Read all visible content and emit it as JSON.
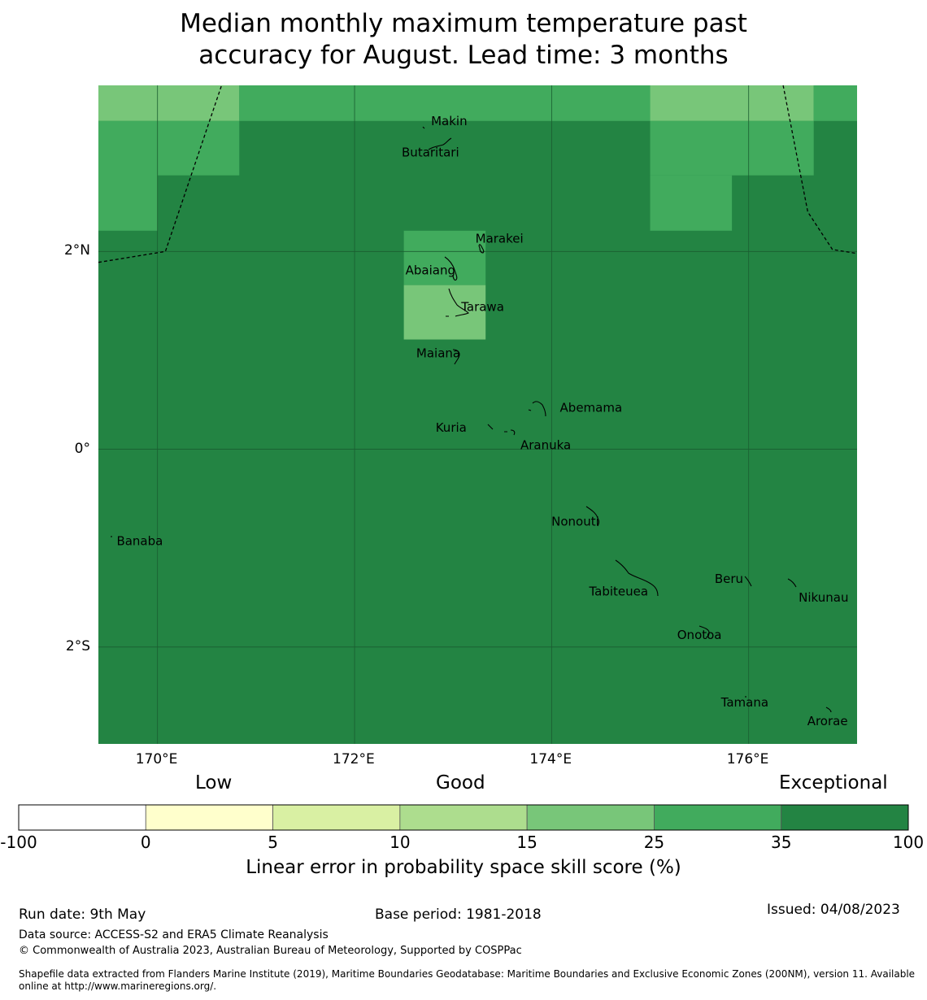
{
  "title": {
    "line1": "Median monthly maximum temperature past",
    "line2": "accuracy for August. Lead time: 3 months"
  },
  "map": {
    "extent": {
      "lon_min": 169.4,
      "lon_max": 177.1,
      "lat_min": -2.98,
      "lat_max": 3.68
    },
    "x_ticks": [
      {
        "lon": 170,
        "label": "170°E"
      },
      {
        "lon": 172,
        "label": "172°E"
      },
      {
        "lon": 174,
        "label": "174°E"
      },
      {
        "lon": 176,
        "label": "176°E"
      }
    ],
    "y_ticks": [
      {
        "lat": 2,
        "label": "2°N"
      },
      {
        "lat": 0,
        "label": "0°"
      },
      {
        "lat": -2,
        "label": "2°S"
      }
    ],
    "background_category": "35 to 100",
    "cells": [
      {
        "lon": [
          169.4,
          170.0
        ],
        "lat": [
          3.32,
          3.68
        ],
        "category": "15 to 25"
      },
      {
        "lon": [
          170.0,
          170.83
        ],
        "lat": [
          3.32,
          3.68
        ],
        "category": "15 to 25"
      },
      {
        "lon": [
          170.83,
          175.0
        ],
        "lat": [
          3.32,
          3.68
        ],
        "category": "25 to 35"
      },
      {
        "lon": [
          175.0,
          176.66
        ],
        "lat": [
          3.32,
          3.68
        ],
        "category": "15 to 25"
      },
      {
        "lon": [
          176.66,
          177.1
        ],
        "lat": [
          3.32,
          3.68
        ],
        "category": "25 to 35"
      },
      {
        "lon": [
          169.4,
          170.0
        ],
        "lat": [
          2.21,
          3.32
        ],
        "category": "25 to 35"
      },
      {
        "lon": [
          170.0,
          170.83
        ],
        "lat": [
          2.77,
          3.32
        ],
        "category": "25 to 35"
      },
      {
        "lon": [
          175.0,
          176.66
        ],
        "lat": [
          2.77,
          3.32
        ],
        "category": "25 to 35"
      },
      {
        "lon": [
          175.0,
          175.83
        ],
        "lat": [
          2.21,
          2.77
        ],
        "category": "25 to 35"
      },
      {
        "lon": [
          172.5,
          173.33
        ],
        "lat": [
          1.66,
          2.21
        ],
        "category": "25 to 35"
      },
      {
        "lon": [
          172.5,
          173.33
        ],
        "lat": [
          1.11,
          1.66
        ],
        "category": "15 to 25"
      }
    ],
    "boundaries": [
      [
        [
          169.4,
          1.89
        ],
        [
          170.08,
          2.0
        ],
        [
          170.65,
          3.68
        ]
      ],
      [
        [
          176.35,
          3.68
        ],
        [
          176.6,
          2.4
        ],
        [
          176.85,
          2.02
        ],
        [
          177.1,
          1.98
        ]
      ]
    ],
    "places": [
      {
        "name": "Makin",
        "lon": 172.96,
        "lat": 3.32
      },
      {
        "name": "Butaritari",
        "lon": 172.77,
        "lat": 3.0
      },
      {
        "name": "Marakei",
        "lon": 173.47,
        "lat": 2.13
      },
      {
        "name": "Abaiang",
        "lon": 172.77,
        "lat": 1.81
      },
      {
        "name": "Tarawa",
        "lon": 173.3,
        "lat": 1.44
      },
      {
        "name": "Maiana",
        "lon": 172.85,
        "lat": 0.97
      },
      {
        "name": "Abemama",
        "lon": 174.4,
        "lat": 0.42
      },
      {
        "name": "Kuria",
        "lon": 172.98,
        "lat": 0.22
      },
      {
        "name": "Aranuka",
        "lon": 173.94,
        "lat": 0.04
      },
      {
        "name": "Nonouti",
        "lon": 174.24,
        "lat": -0.73
      },
      {
        "name": "Banaba",
        "lon": 169.82,
        "lat": -0.93
      },
      {
        "name": "Beru",
        "lon": 175.8,
        "lat": -1.31
      },
      {
        "name": "Tabiteuea",
        "lon": 174.68,
        "lat": -1.44
      },
      {
        "name": "Nikunau",
        "lon": 176.76,
        "lat": -1.5
      },
      {
        "name": "Onotoa",
        "lon": 175.5,
        "lat": -1.88
      },
      {
        "name": "Tamana",
        "lon": 175.96,
        "lat": -2.56
      },
      {
        "name": "Arorae",
        "lon": 176.8,
        "lat": -2.75
      }
    ]
  },
  "colorbar": {
    "category_labels": [
      "Low",
      "Good",
      "Exceptional"
    ],
    "bins": [
      {
        "from": -100,
        "to": 0,
        "color": "#ffffff"
      },
      {
        "from": 0,
        "to": 5,
        "color": "#ffffcc"
      },
      {
        "from": 5,
        "to": 10,
        "color": "#d9f0a3"
      },
      {
        "from": 10,
        "to": 15,
        "color": "#addd8e"
      },
      {
        "from": 15,
        "to": 25,
        "color": "#78c679"
      },
      {
        "from": 25,
        "to": 35,
        "color": "#41ab5d"
      },
      {
        "from": 35,
        "to": 100,
        "color": "#238443"
      }
    ],
    "tick_labels": [
      "-100",
      "0",
      "5",
      "10",
      "15",
      "25",
      "35",
      "100"
    ],
    "title": "Linear error in probability space skill score (%)"
  },
  "footer": {
    "run_date": "Run date: 9th May",
    "base_period": "Base period: 1981-2018",
    "issued": "Issued: 04/08/2023",
    "data_source": "Data source: ACCESS-S2 and ERA5 Climate Reanalysis",
    "copyright": "© Commonwealth of Australia 2023, Australian Bureau of Meteorology, Supported by COSPPac",
    "shapefile_line1": "Shapefile data extracted from Flanders Marine Institute (2019), Maritime Boundaries Geodatabase: Maritime Boundaries and Exclusive Economic Zones (200NM), version 11. Available",
    "shapefile_line2": "online at http://www.marineregions.org/."
  }
}
